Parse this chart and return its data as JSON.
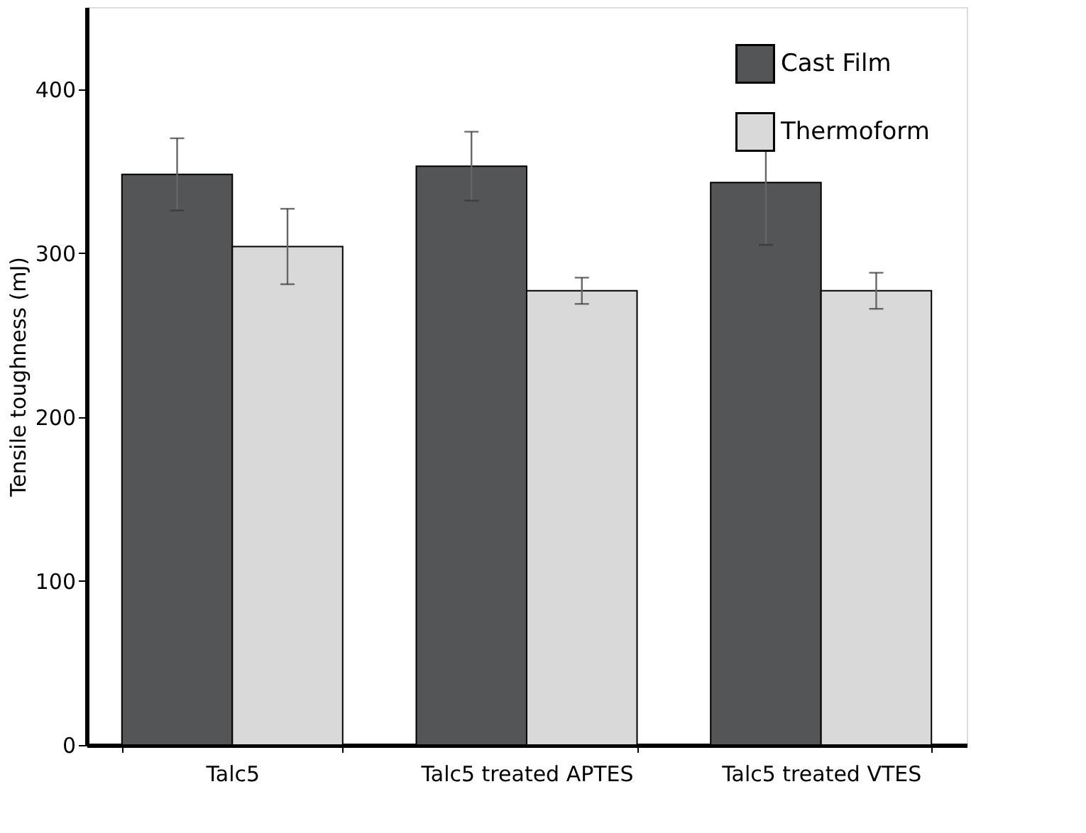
{
  "chart_data": {
    "type": "bar",
    "ylabel": "Tensile toughness (mJ)",
    "categories": [
      "Talc5",
      "Talc5 treated APTES",
      "Talc5 treated VTES"
    ],
    "series": [
      {
        "name": "Cast Film",
        "color": "#545557",
        "values": [
          348,
          353,
          343
        ],
        "errors": [
          22,
          21,
          38
        ]
      },
      {
        "name": "Thermoform",
        "color": "#d9d9d9",
        "values": [
          304,
          277,
          277
        ],
        "errors": [
          23,
          8,
          11
        ]
      }
    ],
    "ylim": [
      0,
      450
    ],
    "yticks": [
      0,
      100,
      200,
      300,
      400
    ],
    "grid": false,
    "legend": "top right"
  }
}
